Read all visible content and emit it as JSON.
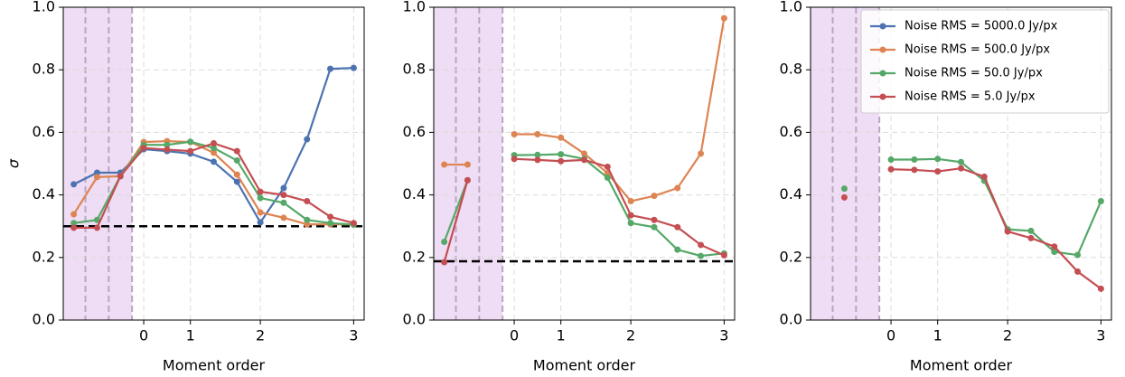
{
  "chart_data": [
    {
      "type": "line",
      "xlabel": "Moment order",
      "ylabel": "σ",
      "categories": [
        null,
        null,
        null,
        "0",
        null,
        "1",
        null,
        null,
        "2",
        null,
        null,
        null,
        "3"
      ],
      "ylim": [
        0,
        1
      ],
      "yticks": [
        {
          "value": 0,
          "label": "0.0"
        },
        0.2,
        0.4,
        0.6,
        0.8,
        {
          "value": 1,
          "label": "1.0"
        }
      ],
      "grid": true,
      "hline": 0.3,
      "series": [
        {
          "color": "#4c72b0",
          "values": [
            0.434,
            0.471,
            0.471,
            0.546,
            0.54,
            0.532,
            0.506,
            0.442,
            0.312,
            0.422,
            0.578,
            0.803,
            0.806
          ]
        },
        {
          "color": "#dd8452",
          "values": [
            0.338,
            0.457,
            0.46,
            0.569,
            0.572,
            0.569,
            0.535,
            0.465,
            0.344,
            0.327,
            0.306,
            0.306,
            0.306
          ]
        },
        {
          "color": "#55a868",
          "values": [
            0.31,
            0.32,
            0.46,
            0.56,
            0.56,
            0.57,
            0.55,
            0.51,
            0.39,
            0.375,
            0.32,
            0.31,
            0.305
          ]
        },
        {
          "color": "#c44e52",
          "values": [
            0.295,
            0.295,
            0.46,
            0.55,
            0.545,
            0.54,
            0.565,
            0.54,
            0.41,
            0.4,
            0.38,
            0.33,
            0.31
          ]
        }
      ]
    },
    {
      "type": "line",
      "xlabel": "Moment order",
      "categories": [
        null,
        null,
        null,
        "0",
        null,
        "1",
        null,
        null,
        "2",
        null,
        null,
        null,
        "3"
      ],
      "ylim": [
        0,
        1
      ],
      "yticks": [
        {
          "value": 0,
          "label": "0.0"
        },
        0.2,
        0.4,
        0.6,
        0.8,
        {
          "value": 1,
          "label": "1.0"
        }
      ],
      "grid": true,
      "hline": 0.188,
      "series": [
        {
          "color": "#dd8452",
          "values": [
            0.497,
            0.497,
            null,
            0.594,
            0.594,
            0.583,
            0.532,
            0.47,
            0.38,
            0.397,
            0.422,
            0.532,
            0.965
          ]
        },
        {
          "color": "#55a868",
          "values": [
            0.25,
            0.447,
            null,
            0.527,
            0.528,
            0.53,
            0.515,
            0.455,
            0.31,
            0.297,
            0.225,
            0.205,
            0.213
          ]
        },
        {
          "color": "#c44e52",
          "values": [
            0.185,
            0.447,
            null,
            0.515,
            0.512,
            0.508,
            0.512,
            0.49,
            0.335,
            0.32,
            0.297,
            0.24,
            0.207
          ]
        }
      ]
    },
    {
      "type": "line",
      "xlabel": "Moment order",
      "categories": [
        null,
        null,
        null,
        "0",
        null,
        "1",
        null,
        null,
        "2",
        null,
        null,
        null,
        "3"
      ],
      "ylim": [
        0,
        1
      ],
      "yticks": [
        {
          "value": 0,
          "label": "0.0"
        },
        0.2,
        0.4,
        0.6,
        0.8,
        {
          "value": 1,
          "label": "1.0"
        }
      ],
      "grid": true,
      "legend": "upper right",
      "series": [
        {
          "name": "Noise RMS = 5000.0 Jy/px",
          "color": "#4c72b0",
          "values": [
            null,
            null,
            null,
            null,
            null,
            null,
            null,
            null,
            null,
            null,
            null,
            null,
            null
          ]
        },
        {
          "name": "Noise RMS = 500.0 Jy/px",
          "color": "#dd8452",
          "values": [
            null,
            null,
            null,
            null,
            null,
            null,
            null,
            null,
            null,
            null,
            null,
            null,
            null
          ]
        },
        {
          "name": "Noise RMS = 50.0 Jy/px",
          "color": "#55a868",
          "values": [
            null,
            0.42,
            null,
            0.513,
            0.513,
            0.515,
            0.505,
            0.445,
            0.29,
            0.285,
            0.218,
            0.208,
            0.38
          ]
        },
        {
          "name": "Noise RMS = 5.0 Jy/px",
          "color": "#c44e52",
          "values": [
            null,
            0.392,
            null,
            0.482,
            0.48,
            0.475,
            0.485,
            0.458,
            0.283,
            0.262,
            0.235,
            0.155,
            0.1
          ]
        }
      ]
    }
  ]
}
